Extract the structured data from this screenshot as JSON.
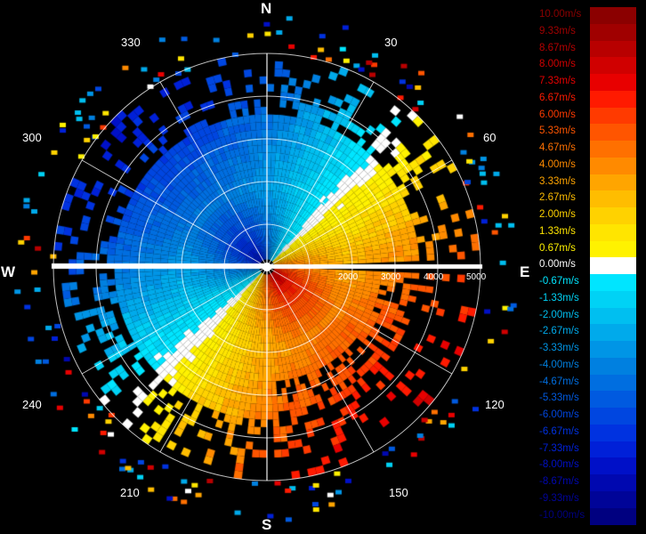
{
  "compass": {
    "north": "N",
    "south": "S",
    "east": "E",
    "west": "W"
  },
  "azimuth_labels": [
    "30",
    "60",
    "120",
    "150",
    "210",
    "240",
    "300",
    "330"
  ],
  "range_labels": [
    "2000",
    "3000",
    "4000",
    "5000"
  ],
  "legend": {
    "items": [
      {
        "label": "10.00m/s",
        "color": "#8b0000"
      },
      {
        "label": "9.33m/s",
        "color": "#a00000"
      },
      {
        "label": "8.67m/s",
        "color": "#b80000"
      },
      {
        "label": "8.00m/s",
        "color": "#d00000"
      },
      {
        "label": "7.33m/s",
        "color": "#e80000"
      },
      {
        "label": "6.67m/s",
        "color": "#ff1a00"
      },
      {
        "label": "6.00m/s",
        "color": "#ff3a00"
      },
      {
        "label": "5.33m/s",
        "color": "#ff5500"
      },
      {
        "label": "4.67m/s",
        "color": "#ff7000"
      },
      {
        "label": "4.00m/s",
        "color": "#ff8a00"
      },
      {
        "label": "3.33m/s",
        "color": "#ffa500"
      },
      {
        "label": "2.67m/s",
        "color": "#ffbd00"
      },
      {
        "label": "2.00m/s",
        "color": "#ffd200"
      },
      {
        "label": "1.33m/s",
        "color": "#ffe500"
      },
      {
        "label": "0.67m/s",
        "color": "#fff200"
      },
      {
        "label": "0.00m/s",
        "color": "#ffffff"
      },
      {
        "label": "-0.67m/s",
        "color": "#00e5ff"
      },
      {
        "label": "-1.33m/s",
        "color": "#00d2f5"
      },
      {
        "label": "-2.00m/s",
        "color": "#00bff0"
      },
      {
        "label": "-2.67m/s",
        "color": "#00aaeb"
      },
      {
        "label": "-3.33m/s",
        "color": "#0095e6"
      },
      {
        "label": "-4.00m/s",
        "color": "#0080e0"
      },
      {
        "label": "-4.67m/s",
        "color": "#006ee0"
      },
      {
        "label": "-5.33m/s",
        "color": "#005ae0"
      },
      {
        "label": "-6.00m/s",
        "color": "#0046e0"
      },
      {
        "label": "-6.67m/s",
        "color": "#0032e0"
      },
      {
        "label": "-7.33m/s",
        "color": "#0020d8"
      },
      {
        "label": "-8.00m/s",
        "color": "#0010c8"
      },
      {
        "label": "-8.67m/s",
        "color": "#0008b0"
      },
      {
        "label": "-9.33m/s",
        "color": "#000498"
      },
      {
        "label": "-10.00m/s",
        "color": "#000080"
      }
    ]
  }
}
